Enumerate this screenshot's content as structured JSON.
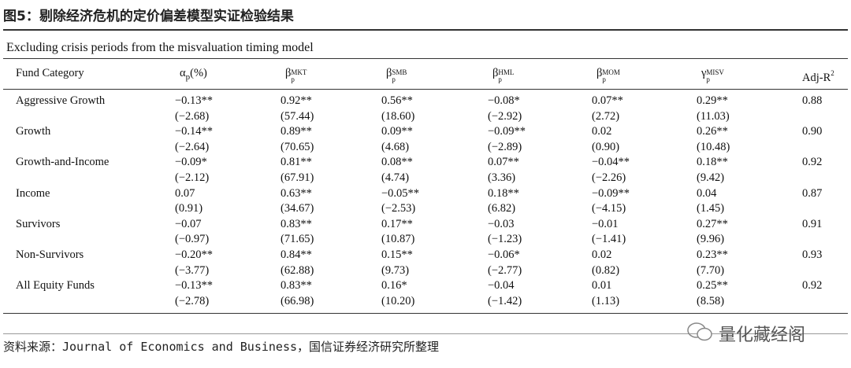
{
  "header": {
    "title": "图5：剔除经济危机的定价偏差模型实证检验结果"
  },
  "table": {
    "caption": "Excluding crisis periods from the misvaluation timing model",
    "columns": [
      {
        "text": "Fund Category"
      },
      {
        "symbol": "α",
        "sub": "p",
        "suffix": "(%)"
      },
      {
        "symbol": "β",
        "sub": "p",
        "sup": "MKT"
      },
      {
        "symbol": "β",
        "sub": "p",
        "sup": "SMB"
      },
      {
        "symbol": "β",
        "sub": "p",
        "sup": "HML"
      },
      {
        "symbol": "β",
        "sub": "p",
        "sup": "MOM"
      },
      {
        "symbol": "γ",
        "sub": "p",
        "sup": "MISV"
      },
      {
        "text": "Adj-R",
        "sup": "2"
      }
    ],
    "rows": [
      {
        "fund": "Aggressive Growth",
        "coef": [
          "−0.13**",
          "0.92**",
          "0.56**",
          "−0.08*",
          "0.07**",
          "0.29**"
        ],
        "tstat": [
          "(−2.68)",
          "(57.44)",
          "(18.60)",
          "(−2.92)",
          "(2.72)",
          "(11.03)"
        ],
        "adj_r2": "0.88"
      },
      {
        "fund": "Growth",
        "coef": [
          "−0.14**",
          "0.89**",
          "0.09**",
          "−0.09**",
          "0.02",
          "0.26**"
        ],
        "tstat": [
          "(−2.64)",
          "(70.65)",
          "(4.68)",
          "(−2.89)",
          "(0.90)",
          "(10.48)"
        ],
        "adj_r2": "0.90"
      },
      {
        "fund": "Growth-and-Income",
        "coef": [
          "−0.09*",
          "0.81**",
          "0.08**",
          "0.07**",
          "−0.04**",
          "0.18**"
        ],
        "tstat": [
          "(−2.12)",
          "(67.91)",
          "(4.74)",
          "(3.36)",
          "(−2.26)",
          "(9.42)"
        ],
        "adj_r2": "0.92"
      },
      {
        "fund": "Income",
        "coef": [
          "0.07",
          "0.63**",
          "−0.05**",
          "0.18**",
          "−0.09**",
          "0.04"
        ],
        "tstat": [
          "(0.91)",
          "(34.67)",
          "(−2.53)",
          "(6.82)",
          "(−4.15)",
          "(1.45)"
        ],
        "adj_r2": "0.87"
      },
      {
        "fund": "Survivors",
        "coef": [
          "−0.07",
          "0.83**",
          "0.17**",
          "−0.03",
          "−0.01",
          "0.27**"
        ],
        "tstat": [
          "(−0.97)",
          "(71.65)",
          "(10.87)",
          "(−1.23)",
          "(−1.41)",
          "(9.96)"
        ],
        "adj_r2": "0.91"
      },
      {
        "fund": "Non-Survivors",
        "coef": [
          "−0.20**",
          "0.84**",
          "0.15**",
          "−0.06*",
          "0.02",
          "0.23**"
        ],
        "tstat": [
          "(−3.77)",
          "(62.88)",
          "(9.73)",
          "(−2.77)",
          "(0.82)",
          "(7.70)"
        ],
        "adj_r2": "0.93"
      },
      {
        "fund": "All Equity Funds",
        "coef": [
          "−0.13**",
          "0.83**",
          "0.16*",
          "−0.04",
          "0.01",
          "0.25**"
        ],
        "tstat": [
          "(−2.78)",
          "(66.98)",
          "(10.20)",
          "(−1.42)",
          "(1.13)",
          "(8.58)"
        ],
        "adj_r2": "0.92"
      }
    ]
  },
  "footer": {
    "source": "资料来源：Journal of Economics and Business，国信证券经济研究所整理",
    "watermark": "量化藏经阁"
  }
}
